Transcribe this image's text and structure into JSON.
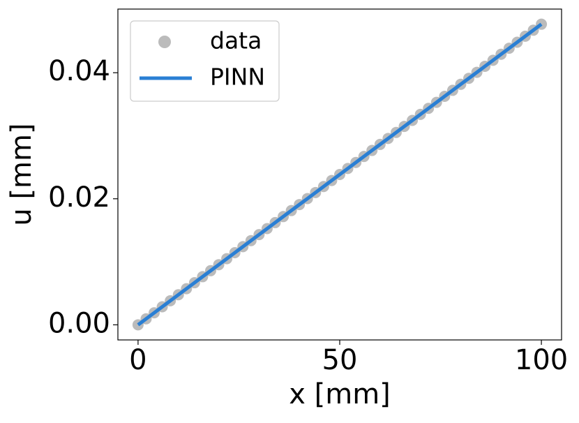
{
  "chart_data": {
    "type": "line",
    "xlabel": "x [mm]",
    "ylabel": "u [mm]",
    "x": [
      0,
      2,
      4,
      6,
      8,
      10,
      12,
      14,
      16,
      18,
      20,
      22,
      24,
      26,
      28,
      30,
      32,
      34,
      36,
      38,
      40,
      42,
      44,
      46,
      48,
      50,
      52,
      54,
      56,
      58,
      60,
      62,
      64,
      66,
      68,
      70,
      72,
      74,
      76,
      78,
      80,
      82,
      84,
      86,
      88,
      90,
      92,
      94,
      96,
      98,
      100
    ],
    "series": [
      {
        "name": "data",
        "color": "#bbbbbb",
        "style": "marker",
        "values": [
          0,
          0.000954,
          0.001908,
          0.002862,
          0.003816,
          0.00477,
          0.005724,
          0.006678,
          0.007632,
          0.008586,
          0.00954,
          0.010494,
          0.011448,
          0.012402,
          0.013356,
          0.01431,
          0.015264,
          0.016218,
          0.017172,
          0.018126,
          0.01908,
          0.020034,
          0.020988,
          0.021942,
          0.022896,
          0.02385,
          0.024804,
          0.025758,
          0.026712,
          0.027666,
          0.02862,
          0.029574,
          0.030528,
          0.031482,
          0.032436,
          0.03339,
          0.034344,
          0.035298,
          0.036252,
          0.037206,
          0.03816,
          0.039114,
          0.040068,
          0.041022,
          0.041976,
          0.04293,
          0.043884,
          0.044838,
          0.045792,
          0.046746,
          0.0477
        ]
      },
      {
        "name": "PINN",
        "color": "#2a7fd4",
        "style": "line",
        "values": [
          0,
          0.000954,
          0.001908,
          0.002862,
          0.003816,
          0.00477,
          0.005724,
          0.006678,
          0.007632,
          0.008586,
          0.00954,
          0.010494,
          0.011448,
          0.012402,
          0.013356,
          0.01431,
          0.015264,
          0.016218,
          0.017172,
          0.018126,
          0.01908,
          0.020034,
          0.020988,
          0.021942,
          0.022896,
          0.02385,
          0.024804,
          0.025758,
          0.026712,
          0.027666,
          0.02862,
          0.029574,
          0.030528,
          0.031482,
          0.032436,
          0.03339,
          0.034344,
          0.035298,
          0.036252,
          0.037206,
          0.03816,
          0.039114,
          0.040068,
          0.041022,
          0.041976,
          0.04293,
          0.043884,
          0.044838,
          0.045792,
          0.046746,
          0.0477
        ]
      }
    ],
    "xlim": [
      -5,
      105
    ],
    "ylim": [
      -0.0024,
      0.0501
    ],
    "xticks": [
      0,
      50,
      100
    ],
    "yticks": [
      {
        "value": 0,
        "label": "0.00"
      },
      {
        "value": 0.02,
        "label": "0.02"
      },
      {
        "value": 0.04,
        "label": "0.04"
      }
    ],
    "legend": "upper left"
  }
}
